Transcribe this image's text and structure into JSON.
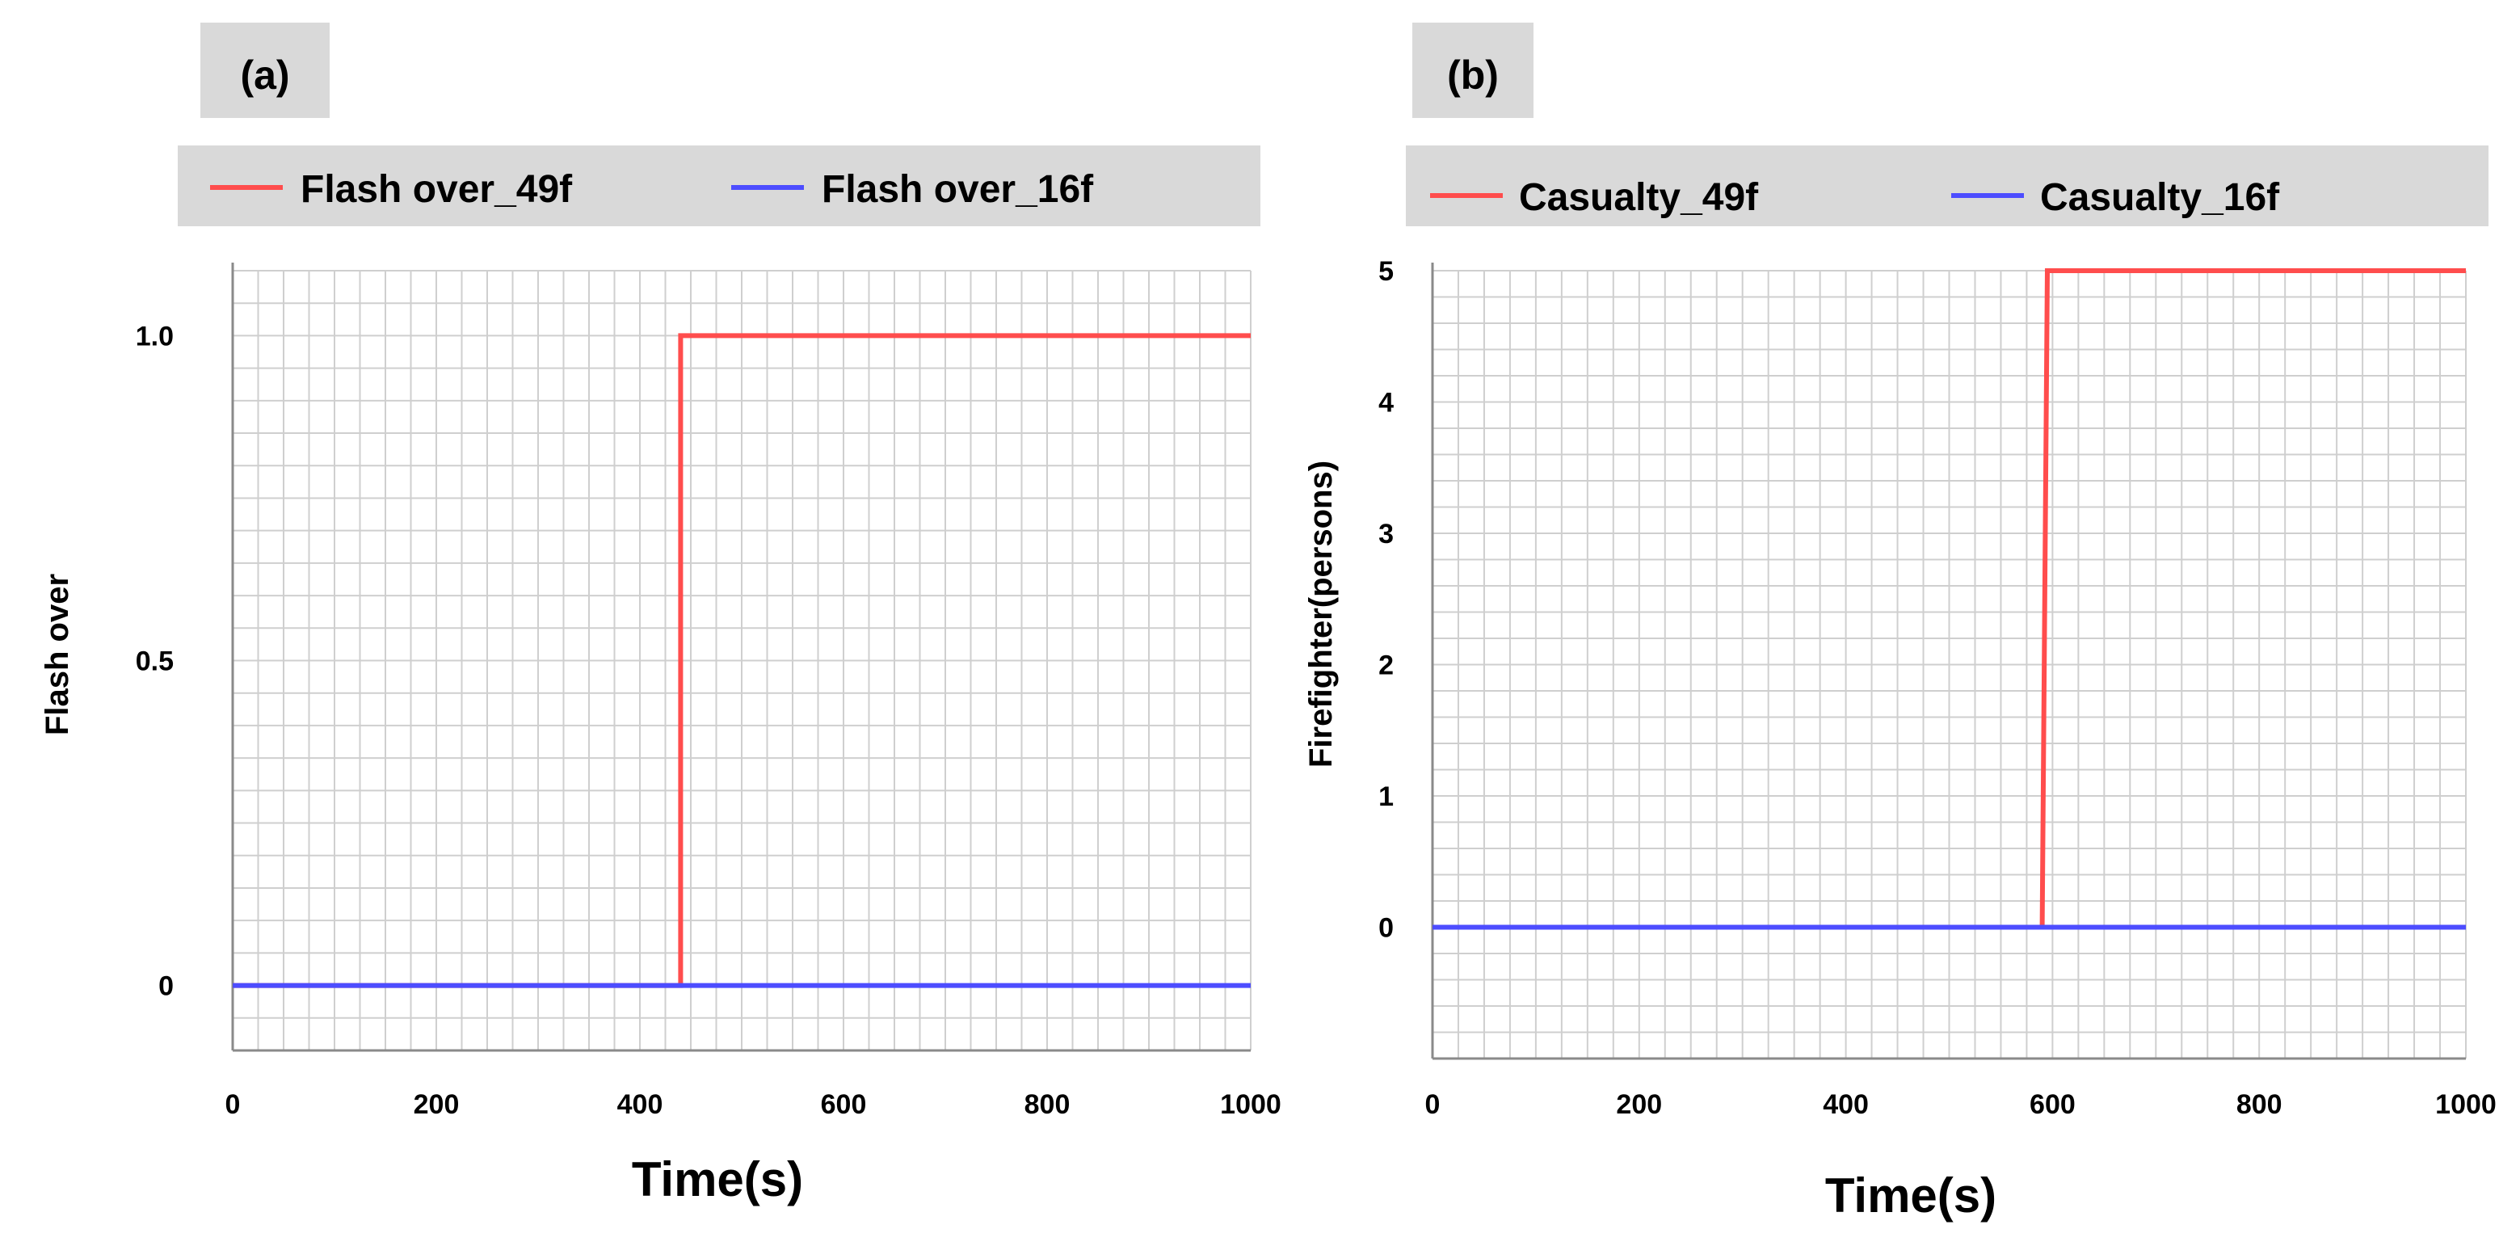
{
  "chart_data": [
    {
      "type": "line",
      "panel_label": "(a)",
      "title": "",
      "xlabel": "Time(s)",
      "ylabel": "Flash over",
      "xlim": [
        0,
        1000
      ],
      "ylim": [
        -0.1,
        1.1
      ],
      "x_ticks": [
        0,
        200,
        400,
        600,
        800,
        1000
      ],
      "x_tick_labels": [
        "0",
        "200",
        "400",
        "600",
        "800",
        "1000"
      ],
      "y_ticks": [
        0,
        0.5,
        1.0
      ],
      "y_tick_labels": [
        "0",
        "0.5",
        "1.0"
      ],
      "grid": true,
      "legend_position": "top",
      "series": [
        {
          "name": "Flash over_49f",
          "color": "#ff4d4d",
          "x": [
            0,
            440,
            440,
            1000
          ],
          "y": [
            0,
            0,
            1,
            1
          ]
        },
        {
          "name": "Flash over_16f",
          "color": "#4d4dff",
          "x": [
            0,
            1000
          ],
          "y": [
            0,
            0
          ]
        }
      ]
    },
    {
      "type": "line",
      "panel_label": "(b)",
      "title": "",
      "xlabel": "Time(s)",
      "ylabel": "Firefighter(persons)",
      "xlim": [
        0,
        1000
      ],
      "ylim": [
        -1,
        5
      ],
      "x_ticks": [
        0,
        200,
        400,
        600,
        800,
        1000
      ],
      "x_tick_labels": [
        "0",
        "200",
        "400",
        "600",
        "800",
        "1000"
      ],
      "y_ticks": [
        0,
        1,
        2,
        3,
        4,
        5
      ],
      "y_tick_labels": [
        "0",
        "1",
        "2",
        "3",
        "4",
        "5"
      ],
      "grid": true,
      "legend_position": "top",
      "series": [
        {
          "name": "Casualty_49f",
          "color": "#ff4d4d",
          "x": [
            0,
            590,
            595,
            1000
          ],
          "y": [
            0,
            0,
            5,
            5
          ]
        },
        {
          "name": "Casualty_16f",
          "color": "#4d4dff",
          "x": [
            0,
            1000
          ],
          "y": [
            0,
            0
          ]
        }
      ]
    }
  ]
}
